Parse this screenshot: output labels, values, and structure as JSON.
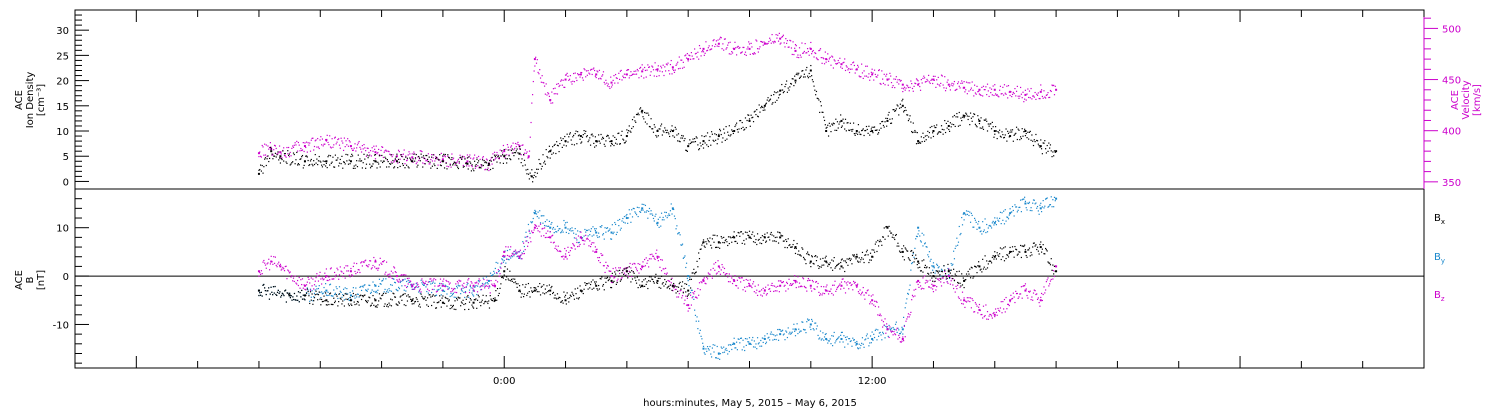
{
  "chart_data": [
    {
      "type": "scatter",
      "panel": "top",
      "ylabel_left": [
        "ACE",
        "Ion Density",
        "[cm⁻³]"
      ],
      "ylabel_right": [
        "ACE",
        "Velocity",
        "[km/s]"
      ],
      "ylim_left": [
        -1.5,
        34
      ],
      "ylim_right": [
        343,
        518
      ],
      "yticks_left": [
        0,
        5,
        10,
        15,
        20,
        25,
        30
      ],
      "yticks_right": [
        350,
        400,
        450,
        500
      ],
      "series": [
        {
          "name": "Ion Density",
          "axis": "left",
          "color": "#000000",
          "x": [
            -8.0,
            -7.6,
            -7.3,
            -6.5,
            -5.8,
            -5.0,
            -4.2,
            -3.5,
            -3.0,
            -2.0,
            -1.2,
            -0.5,
            0.0,
            0.5,
            0.9,
            1.5,
            2.0,
            2.5,
            3.0,
            3.5,
            4.0,
            4.5,
            5.0,
            5.5,
            6.0,
            6.5,
            7.0,
            7.5,
            8.0,
            8.5,
            9.0,
            9.5,
            10.0,
            10.5,
            11.0,
            11.5,
            12.0,
            12.5,
            13.0,
            13.5,
            14.0,
            14.5,
            15.0,
            15.5,
            16.0,
            16.5,
            17.0,
            17.5,
            18.0
          ],
          "y": [
            1.5,
            6.0,
            5.0,
            4.0,
            4.0,
            4.0,
            4.0,
            4.0,
            4.0,
            4.0,
            3.5,
            3.5,
            5.0,
            5.5,
            1.0,
            6.0,
            8.0,
            9.0,
            8.0,
            8.0,
            9.0,
            14.0,
            10.0,
            10.0,
            7.0,
            8.0,
            9.0,
            10.0,
            12.0,
            15.0,
            18.0,
            20.0,
            22.0,
            10.0,
            12.0,
            10.0,
            10.0,
            12.0,
            15.0,
            8.0,
            10.0,
            11.0,
            13.0,
            12.0,
            10.0,
            9.0,
            10.0,
            7.0,
            6.0
          ]
        },
        {
          "name": "Velocity",
          "axis": "right",
          "color": "#cc00cc",
          "x": [
            -8.0,
            -7.6,
            -7.3,
            -6.5,
            -5.8,
            -5.0,
            -4.2,
            -3.5,
            -3.0,
            -2.0,
            -1.2,
            -0.5,
            0.0,
            0.5,
            0.8,
            1.0,
            1.5,
            2.0,
            2.5,
            3.0,
            3.5,
            4.0,
            4.5,
            5.0,
            5.5,
            6.0,
            6.5,
            7.0,
            7.5,
            8.0,
            8.5,
            9.0,
            9.5,
            10.0,
            10.5,
            11.0,
            11.5,
            12.0,
            12.5,
            13.0,
            13.5,
            14.0,
            14.5,
            15.0,
            15.5,
            16.0,
            16.5,
            17.0,
            17.5,
            18.0
          ],
          "y": [
            378,
            382,
            379,
            385,
            391,
            385,
            379,
            375,
            374,
            372,
            370,
            368,
            380,
            385,
            375,
            470,
            430,
            450,
            455,
            455,
            447,
            455,
            458,
            460,
            462,
            470,
            480,
            485,
            480,
            480,
            485,
            490,
            478,
            480,
            470,
            465,
            460,
            455,
            450,
            445,
            445,
            450,
            445,
            442,
            440,
            440,
            438,
            435,
            438,
            440
          ]
        }
      ]
    },
    {
      "type": "scatter",
      "panel": "bottom",
      "ylabel_left": [
        "ACE",
        "B",
        "[nT]"
      ],
      "ylim": [
        -19,
        18
      ],
      "yticks": [
        -10,
        0,
        10
      ],
      "series": [
        {
          "name": "Bx",
          "label_main": "B",
          "label_sub": "x",
          "color": "#000000",
          "x": [
            -8.0,
            -7.0,
            -6.5,
            -5.8,
            -5.0,
            -4.2,
            -3.0,
            -2.0,
            -1.0,
            -0.3,
            0.0,
            0.5,
            1.0,
            1.5,
            2.0,
            2.5,
            3.0,
            3.5,
            4.0,
            4.5,
            5.0,
            5.5,
            6.0,
            6.5,
            7.0,
            7.5,
            8.0,
            8.5,
            9.0,
            9.5,
            10.0,
            10.5,
            11.0,
            11.5,
            12.0,
            12.5,
            13.0,
            13.5,
            14.0,
            14.5,
            15.0,
            15.5,
            16.0,
            16.5,
            17.0,
            17.5,
            18.0
          ],
          "y": [
            -3,
            -4,
            -4,
            -5,
            -5,
            -5,
            -5,
            -5.5,
            -5.5,
            -5,
            1,
            -3,
            -3,
            -3,
            -5,
            -3,
            -2,
            -1,
            1,
            -2,
            -1,
            -2,
            -3,
            7,
            7,
            8,
            8,
            8,
            8,
            6,
            3,
            3,
            2,
            4,
            4,
            10,
            5,
            3,
            0,
            1,
            -1,
            2,
            4,
            5,
            5,
            6,
            1
          ]
        },
        {
          "name": "By",
          "label_main": "B",
          "label_sub": "y",
          "color": "#1a88cc",
          "x": [
            -8.0,
            -7.0,
            -6.5,
            -5.8,
            -5.0,
            -4.2,
            -3.0,
            -2.0,
            -1.0,
            -0.5,
            0.0,
            0.5,
            1.0,
            1.5,
            2.0,
            2.5,
            3.0,
            3.5,
            4.0,
            4.5,
            5.0,
            5.5,
            6.0,
            6.5,
            7.0,
            7.5,
            8.0,
            8.5,
            9.0,
            9.5,
            10.0,
            10.5,
            11.0,
            11.5,
            12.0,
            12.5,
            13.0,
            13.5,
            14.0,
            14.5,
            15.0,
            15.5,
            16.0,
            16.5,
            17.0,
            17.5,
            18.0
          ],
          "y": [
            -3,
            -4,
            -4,
            -3,
            -4,
            -2,
            -2,
            -3,
            -3,
            -1,
            4,
            4,
            13,
            10,
            10,
            8,
            9,
            9,
            12,
            14,
            11,
            14,
            0,
            -15,
            -16,
            -14,
            -14,
            -13,
            -12,
            -11,
            -10,
            -13,
            -13,
            -14,
            -13,
            -11,
            -11,
            10,
            2,
            0,
            13,
            10,
            11,
            13,
            15,
            14,
            16
          ]
        },
        {
          "name": "Bz",
          "label_main": "B",
          "label_sub": "z",
          "color": "#cc00cc",
          "x": [
            -8.0,
            -7.6,
            -7.3,
            -6.5,
            -5.8,
            -5.0,
            -4.2,
            -3.5,
            -3.0,
            -2.0,
            -1.0,
            -0.3,
            0.0,
            0.5,
            1.0,
            1.5,
            2.0,
            2.5,
            3.0,
            3.5,
            4.0,
            4.5,
            5.0,
            5.5,
            6.0,
            6.5,
            7.0,
            7.5,
            8.0,
            8.5,
            9.0,
            9.5,
            10.0,
            10.5,
            11.0,
            11.5,
            12.0,
            12.5,
            13.0,
            13.5,
            14.0,
            14.5,
            15.0,
            15.5,
            16.0,
            16.5,
            17.0,
            17.5,
            18.0
          ],
          "y": [
            1,
            3,
            2,
            -2,
            0,
            1,
            3,
            0,
            -2,
            -2,
            -2,
            -2,
            5,
            4,
            10,
            8,
            4,
            8,
            5,
            0,
            1,
            2,
            4,
            -2,
            -6,
            -1,
            2,
            -1,
            -2,
            -3,
            -2,
            -1,
            -2,
            -3,
            -2,
            -2,
            -5,
            -11,
            -13,
            -1,
            -2,
            0,
            -5,
            -7,
            -8,
            -5,
            -3,
            -5,
            2
          ]
        }
      ]
    }
  ],
  "x_axis": {
    "range_hours": [
      -14.0,
      30.0
    ],
    "tick_labels": [
      "0:00",
      "12:00"
    ],
    "tick_values": [
      0,
      12
    ],
    "caption": "hours:minutes,  May  5, 2015 – May  6, 2015"
  },
  "colors": {
    "density": "#000000",
    "velocity": "#cc00cc",
    "bx": "#000000",
    "by": "#1a88cc",
    "bz": "#cc00cc",
    "frame": "#000000"
  }
}
